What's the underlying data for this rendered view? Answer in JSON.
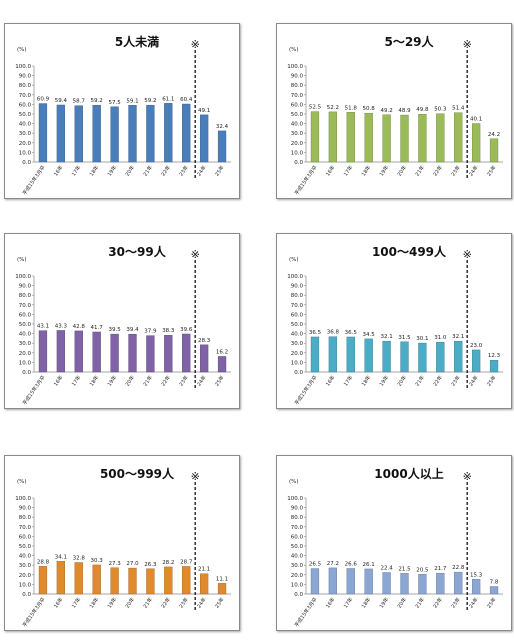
{
  "chart_data": [
    {
      "type": "bar",
      "title": "5人未満",
      "unit": "(%)",
      "marker": "※",
      "color": "#4a7ebb",
      "categories": [
        "平成15年3月卒",
        "16年",
        "17年",
        "18年",
        "19年",
        "20年",
        "21年",
        "22年",
        "23年",
        "24年",
        "25年"
      ],
      "values": [
        60.9,
        59.4,
        58.7,
        59.2,
        57.5,
        59.1,
        59.2,
        61.1,
        60.4,
        49.1,
        32.4
      ],
      "y_ticks": [
        "100.0",
        "90.0",
        "80.0",
        "70.0",
        "60.0",
        "50.0",
        "40.0",
        "30.0",
        "20.0",
        "10.0",
        "0.0"
      ],
      "ylim": [
        0,
        100
      ],
      "grid": false
    },
    {
      "type": "bar",
      "title": "5～29人",
      "unit": "(%)",
      "marker": "※",
      "color": "#9bbb59",
      "categories": [
        "平成15年3月卒",
        "16年",
        "17年",
        "18年",
        "19年",
        "20年",
        "21年",
        "22年",
        "23年",
        "24年",
        "25年"
      ],
      "values": [
        52.5,
        52.2,
        51.8,
        50.8,
        49.2,
        48.9,
        49.8,
        50.3,
        51.4,
        40.1,
        24.2
      ],
      "y_ticks": [
        "100.0",
        "90.0",
        "80.0",
        "70.0",
        "60.0",
        "50.0",
        "40.0",
        "30.0",
        "20.0",
        "10.0",
        "0.0"
      ],
      "ylim": [
        0,
        100
      ],
      "grid": false
    },
    {
      "type": "bar",
      "title": "30～99人",
      "unit": "(%)",
      "marker": "※",
      "color": "#7f63a6",
      "categories": [
        "平成15年3月卒",
        "16年",
        "17年",
        "18年",
        "19年",
        "20年",
        "21年",
        "22年",
        "23年",
        "24年",
        "25年"
      ],
      "values": [
        43.1,
        43.3,
        42.8,
        41.7,
        39.5,
        39.4,
        37.9,
        38.3,
        39.6,
        28.3,
        16.2
      ],
      "y_ticks": [
        "100.0",
        "90.0",
        "80.0",
        "70.0",
        "60.0",
        "50.0",
        "40.0",
        "30.0",
        "20.0",
        "10.0",
        "0.0"
      ],
      "ylim": [
        0,
        100
      ],
      "grid": false
    },
    {
      "type": "bar",
      "title": "100～499人",
      "unit": "(%)",
      "marker": "※",
      "color": "#4bacc6",
      "categories": [
        "平成15年3月卒",
        "16年",
        "17年",
        "18年",
        "19年",
        "20年",
        "21年",
        "22年",
        "23年",
        "24年",
        "25年"
      ],
      "values": [
        36.5,
        36.8,
        36.5,
        34.5,
        32.1,
        31.5,
        30.1,
        31.0,
        32.1,
        23.0,
        12.3
      ],
      "y_ticks": [
        "100.0",
        "90.0",
        "80.0",
        "70.0",
        "60.0",
        "50.0",
        "40.0",
        "30.0",
        "20.0",
        "10.0",
        "0.0"
      ],
      "ylim": [
        0,
        100
      ],
      "grid": false
    },
    {
      "type": "bar",
      "title": "500～999人",
      "unit": "(%)",
      "marker": "※",
      "color": "#e08a2e",
      "categories": [
        "平成15年3月卒",
        "16年",
        "17年",
        "18年",
        "19年",
        "20年",
        "21年",
        "22年",
        "23年",
        "24年",
        "25年"
      ],
      "values": [
        28.8,
        34.1,
        32.8,
        30.3,
        27.3,
        27.0,
        26.3,
        28.2,
        28.7,
        21.1,
        11.1
      ],
      "y_ticks": [
        "100.0",
        "90.0",
        "80.0",
        "70.0",
        "60.0",
        "50.0",
        "40.0",
        "30.0",
        "20.0",
        "10.0",
        "0.0"
      ],
      "ylim": [
        0,
        100
      ],
      "grid": false
    },
    {
      "type": "bar",
      "title": "1000人以上",
      "unit": "(%)",
      "marker": "※",
      "color": "#8ba6d3",
      "categories": [
        "平成15年3月卒",
        "16年",
        "17年",
        "18年",
        "19年",
        "20年",
        "21年",
        "22年",
        "23年",
        "24年",
        "25年"
      ],
      "values": [
        26.5,
        27.2,
        26.6,
        26.1,
        22.4,
        21.5,
        20.5,
        21.7,
        22.8,
        15.3,
        7.8
      ],
      "y_ticks": [
        "100.0",
        "90.0",
        "80.0",
        "70.0",
        "60.0",
        "50.0",
        "40.0",
        "30.0",
        "20.0",
        "10.0",
        "0.0"
      ],
      "ylim": [
        0,
        100
      ],
      "grid": false
    }
  ]
}
